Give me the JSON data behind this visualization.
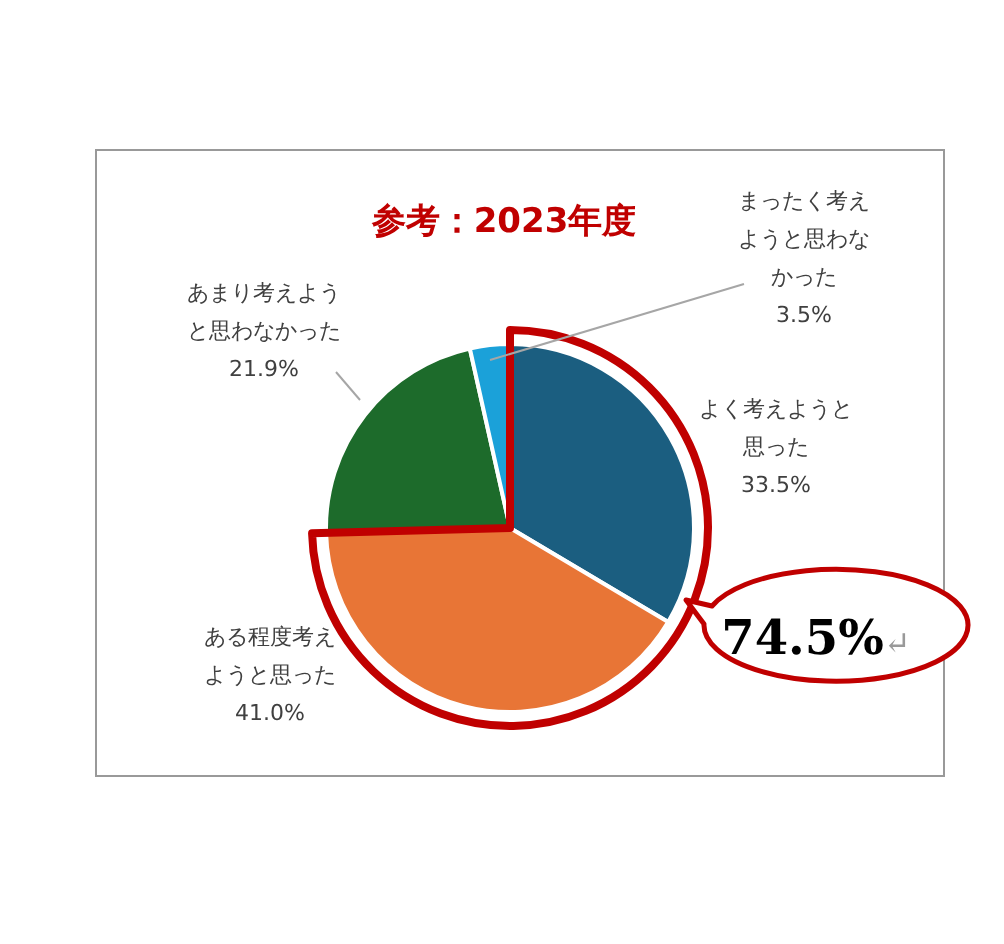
{
  "chart_data": {
    "type": "pie",
    "title": "参考：2023年度",
    "categories": [
      "よく考えようと思った",
      "ある程度考えようと思った",
      "あまり考えようと思わなかった",
      "まったく考えようと思わなかった"
    ],
    "values": [
      33.5,
      41.0,
      21.9,
      3.5
    ],
    "colors": [
      "#1b5e80",
      "#e87536",
      "#1d6b2b",
      "#1ba1d9"
    ],
    "value_labels": [
      "33.5%",
      "41.0%",
      "21.9%",
      "3.5%"
    ],
    "annotations": [
      "74.5%↵"
    ]
  }
}
